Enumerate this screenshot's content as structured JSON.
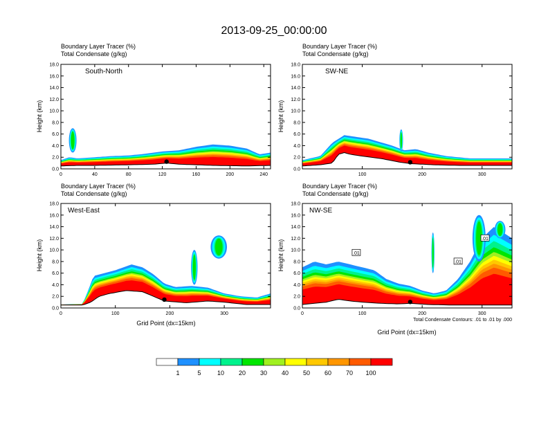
{
  "title": "2013-09-25_00:00:00",
  "caption_line1": "Boundary Layer Tracer   (%)",
  "caption_line2": "Total Condensate   (g/kg)",
  "ylabel": "Height (km)",
  "xlabel": "Grid Point (dx=15km)",
  "contour_note": "Total Condensate Contours: .01 to .01 by .000",
  "chart_data": {
    "type": "heatmap",
    "colorbar": {
      "levels": [
        "1",
        "5",
        "10",
        "20",
        "30",
        "40",
        "50",
        "60",
        "70",
        "100"
      ],
      "colors": [
        "#ffffff",
        "#1e90ff",
        "#00ffff",
        "#00f28c",
        "#00e600",
        "#a0f020",
        "#ffff00",
        "#ffc800",
        "#ff9600",
        "#ff5a00",
        "#ff0000"
      ]
    },
    "panels": [
      {
        "id": "south-north",
        "label": "South-North",
        "xlim": [
          0,
          248
        ],
        "ylim": [
          0,
          18
        ],
        "xticks": [
          "0",
          "40",
          "80",
          "120",
          "160",
          "200",
          "240"
        ],
        "yticks": [
          "0.0",
          "2.0",
          "4.0",
          "6.0",
          "8.0",
          "10.0",
          "12.0",
          "14.0",
          "16.0",
          "18.0"
        ],
        "show_xlabel": false,
        "terrain": [
          [
            0,
            0.5
          ],
          [
            20,
            0.6
          ],
          [
            40,
            0.6
          ],
          [
            80,
            0.7
          ],
          [
            110,
            0.8
          ],
          [
            125,
            1.0
          ],
          [
            140,
            0.8
          ],
          [
            180,
            0.6
          ],
          [
            220,
            0.5
          ],
          [
            248,
            0.6
          ]
        ],
        "tracer_top": [
          [
            0,
            1.5
          ],
          [
            10,
            2.0
          ],
          [
            20,
            1.8
          ],
          [
            40,
            2.0
          ],
          [
            60,
            2.2
          ],
          [
            80,
            2.3
          ],
          [
            100,
            2.6
          ],
          [
            120,
            3.0
          ],
          [
            140,
            3.2
          ],
          [
            160,
            3.8
          ],
          [
            180,
            4.2
          ],
          [
            200,
            4.0
          ],
          [
            220,
            3.5
          ],
          [
            235,
            2.5
          ],
          [
            248,
            2.8
          ]
        ],
        "plumes": [
          {
            "x": 14,
            "y0": 2.8,
            "y1": 7.0,
            "w": 9
          }
        ],
        "marker_x": 125,
        "contour_labels": []
      },
      {
        "id": "sw-ne",
        "label": "SW-NE",
        "xlim": [
          0,
          350
        ],
        "ylim": [
          0,
          18
        ],
        "xticks": [
          "100",
          "200",
          "300"
        ],
        "yticks": [
          "0.0",
          "2.0",
          "4.0",
          "6.0",
          "8.0",
          "10.0",
          "12.0",
          "14.0",
          "16.0",
          "18.0"
        ],
        "show_xlabel": false,
        "terrain": [
          [
            0,
            0.5
          ],
          [
            30,
            0.7
          ],
          [
            50,
            1.0
          ],
          [
            60,
            2.5
          ],
          [
            70,
            2.8
          ],
          [
            80,
            2.5
          ],
          [
            100,
            2.2
          ],
          [
            130,
            1.8
          ],
          [
            160,
            1.2
          ],
          [
            180,
            0.9
          ],
          [
            220,
            0.7
          ],
          [
            260,
            0.6
          ],
          [
            300,
            0.6
          ],
          [
            350,
            0.6
          ]
        ],
        "tracer_top": [
          [
            0,
            1.5
          ],
          [
            30,
            2.2
          ],
          [
            50,
            4.5
          ],
          [
            70,
            5.8
          ],
          [
            90,
            5.5
          ],
          [
            110,
            5.2
          ],
          [
            130,
            4.6
          ],
          [
            150,
            4.0
          ],
          [
            170,
            3.2
          ],
          [
            190,
            3.4
          ],
          [
            210,
            2.8
          ],
          [
            240,
            2.2
          ],
          [
            280,
            1.8
          ],
          [
            320,
            1.8
          ],
          [
            350,
            1.8
          ]
        ],
        "plumes": [
          {
            "x": 165,
            "y0": 3.0,
            "y1": 6.8,
            "w": 6
          }
        ],
        "marker_x": 180,
        "contour_labels": []
      },
      {
        "id": "west-east",
        "label": "West-East",
        "xlim": [
          0,
          385
        ],
        "ylim": [
          0,
          18
        ],
        "xticks": [
          "0",
          "100",
          "200",
          "300"
        ],
        "yticks": [
          "0.0",
          "2.0",
          "4.0",
          "6.0",
          "8.0",
          "10.0",
          "12.0",
          "14.0",
          "16.0",
          "18.0"
        ],
        "show_xlabel": true,
        "terrain": [
          [
            0,
            0.5
          ],
          [
            40,
            0.5
          ],
          [
            55,
            1.0
          ],
          [
            70,
            2.0
          ],
          [
            90,
            2.5
          ],
          [
            120,
            3.0
          ],
          [
            150,
            2.8
          ],
          [
            170,
            2.0
          ],
          [
            190,
            1.2
          ],
          [
            230,
            0.9
          ],
          [
            270,
            1.2
          ],
          [
            300,
            1.0
          ],
          [
            340,
            0.6
          ],
          [
            385,
            0.6
          ]
        ],
        "tracer_top": [
          [
            0,
            0.6
          ],
          [
            40,
            0.7
          ],
          [
            50,
            3.0
          ],
          [
            60,
            5.5
          ],
          [
            80,
            6.0
          ],
          [
            100,
            6.5
          ],
          [
            130,
            7.5
          ],
          [
            150,
            7.0
          ],
          [
            170,
            5.8
          ],
          [
            190,
            4.2
          ],
          [
            210,
            3.6
          ],
          [
            240,
            3.8
          ],
          [
            270,
            3.5
          ],
          [
            300,
            2.5
          ],
          [
            330,
            2.0
          ],
          [
            360,
            1.8
          ],
          [
            385,
            2.5
          ]
        ],
        "plumes": [
          {
            "x": 290,
            "y0": 8.5,
            "y1": 12.5,
            "w": 30
          },
          {
            "x": 245,
            "y0": 4.0,
            "y1": 10.0,
            "w": 12
          }
        ],
        "marker_x": 190,
        "contour_labels": []
      },
      {
        "id": "nw-se",
        "label": "NW-SE",
        "xlim": [
          0,
          350
        ],
        "ylim": [
          0,
          18
        ],
        "xticks": [
          "0",
          "100",
          "200",
          "300"
        ],
        "yticks": [
          "0.0",
          "2.0",
          "4.0",
          "6.0",
          "8.0",
          "10.0",
          "12.0",
          "14.0",
          "16.0",
          "18.0"
        ],
        "show_xlabel": true,
        "terrain": [
          [
            0,
            0.6
          ],
          [
            20,
            0.8
          ],
          [
            40,
            1.0
          ],
          [
            60,
            1.5
          ],
          [
            80,
            1.2
          ],
          [
            100,
            1.0
          ],
          [
            130,
            0.8
          ],
          [
            160,
            0.7
          ],
          [
            180,
            0.8
          ],
          [
            210,
            0.6
          ],
          [
            250,
            0.5
          ],
          [
            300,
            0.5
          ],
          [
            350,
            0.5
          ]
        ],
        "tracer_top": [
          [
            0,
            7.0
          ],
          [
            20,
            8.0
          ],
          [
            40,
            7.5
          ],
          [
            60,
            8.0
          ],
          [
            80,
            7.5
          ],
          [
            100,
            7.0
          ],
          [
            120,
            6.5
          ],
          [
            140,
            5.0
          ],
          [
            160,
            4.2
          ],
          [
            180,
            3.8
          ],
          [
            200,
            3.0
          ],
          [
            220,
            2.5
          ],
          [
            240,
            3.0
          ],
          [
            260,
            5.0
          ],
          [
            280,
            8.0
          ],
          [
            300,
            12.0
          ],
          [
            320,
            14.0
          ],
          [
            335,
            13.0
          ],
          [
            350,
            12.0
          ]
        ],
        "plumes": [
          {
            "x": 295,
            "y0": 8.0,
            "y1": 16.0,
            "w": 22
          },
          {
            "x": 330,
            "y0": 12.0,
            "y1": 15.0,
            "w": 18
          },
          {
            "x": 218,
            "y0": 6.0,
            "y1": 13.0,
            "w": 5
          }
        ],
        "marker_x": 180,
        "contour_labels": [
          {
            "x": 90,
            "y": 9.5,
            "text": ".01"
          },
          {
            "x": 260,
            "y": 8.0,
            "text": ".01"
          },
          {
            "x": 305,
            "y": 12.0,
            "text": ".01"
          }
        ]
      }
    ]
  }
}
